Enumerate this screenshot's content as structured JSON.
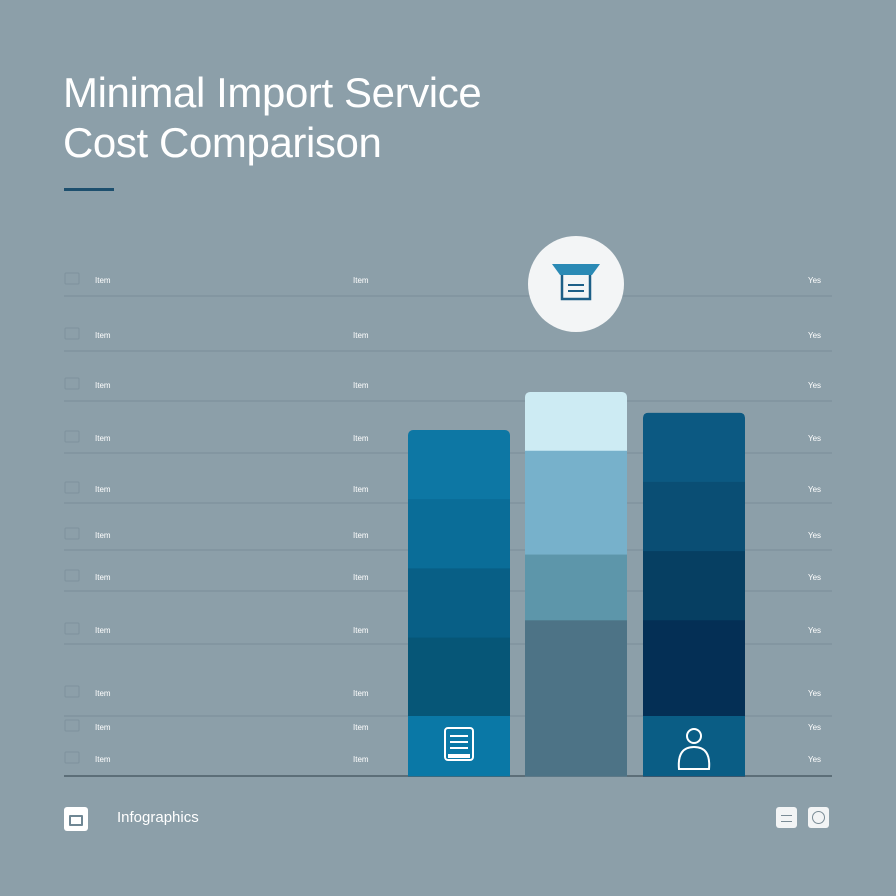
{
  "header": {
    "title_line1": "Minimal Import Service",
    "title_line2": "Cost Comparison"
  },
  "footer": {
    "label": "Infographics",
    "icons": [
      "window-icon",
      "menu-icon",
      "circle-icon"
    ]
  },
  "colors": {
    "background": "#8c9fa9",
    "gridline": "#7a8e99",
    "axis": "#4d5e68",
    "bar1": [
      "#0d77a4",
      "#0a6d98",
      "#085f86",
      "#065677"
    ],
    "bar2": [
      "#cdebf3",
      "#77b1cb",
      "#5d96aa",
      "#4d7386"
    ],
    "bar3": [
      "#0c5982",
      "#0a4e74",
      "#063f62",
      "#042f55"
    ]
  },
  "chart_data": {
    "type": "bar",
    "title": "Minimal Import Service Cost Comparison",
    "row_labels_left": [
      "Item",
      "Item",
      "Item",
      "Item",
      "Item",
      "Item",
      "Item",
      "Item",
      "Item",
      "Item",
      "Item"
    ],
    "row_labels_mid": [
      "Item",
      "Item",
      "Item",
      "Item",
      "Item",
      "Item",
      "Item",
      "Item",
      "Item",
      "Item",
      "Item"
    ],
    "row_labels_right": [
      "Yes",
      "Yes",
      "Yes",
      "Yes",
      "Yes",
      "Yes",
      "Yes",
      "Yes",
      "Yes",
      "Yes",
      "Yes"
    ],
    "series": [
      {
        "icon": "document-icon",
        "segments": [
          20,
          20,
          20,
          40
        ],
        "total": 100,
        "icon_position": "bottom"
      },
      {
        "icon": "package-icon",
        "segments": [
          17,
          30,
          19,
          45
        ],
        "total": 111,
        "icon_position": "top"
      },
      {
        "icon": "person-icon",
        "segments": [
          20,
          20,
          20,
          45
        ],
        "total": 105,
        "icon_position": "bottom"
      }
    ]
  }
}
